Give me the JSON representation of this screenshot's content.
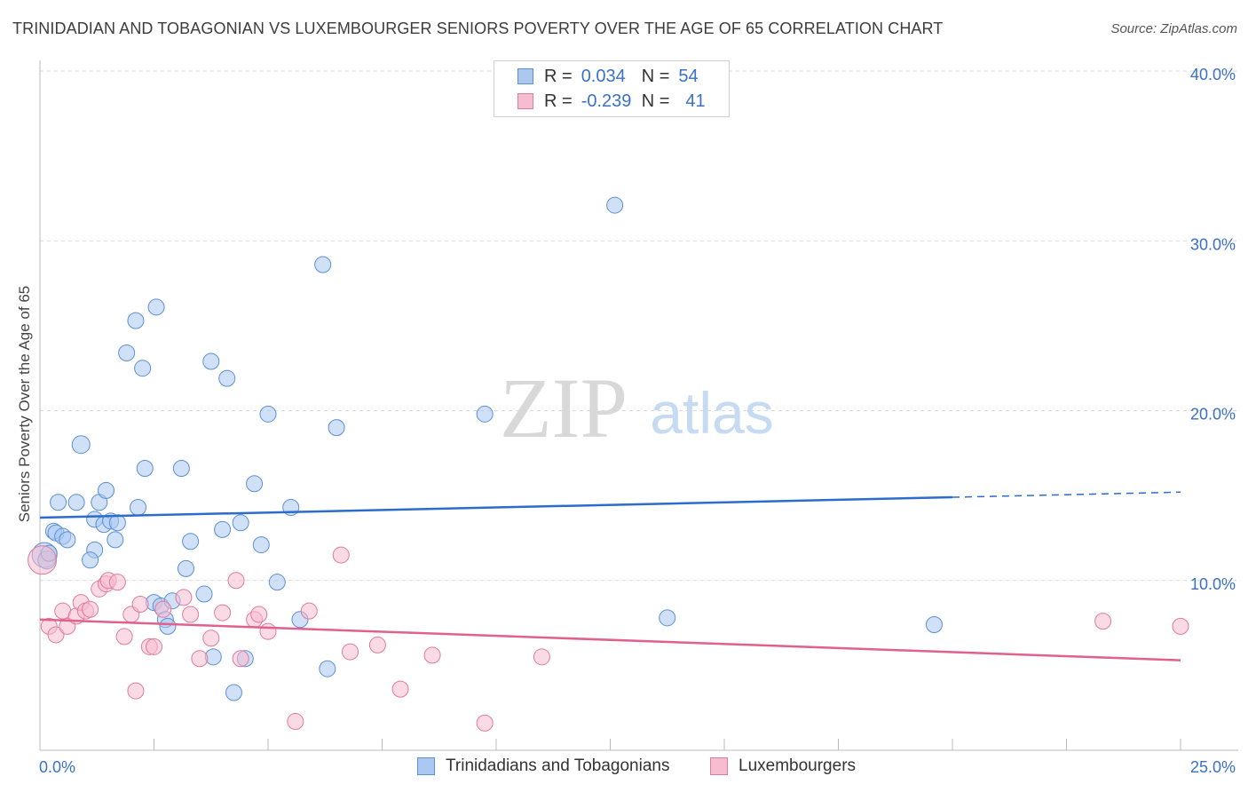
{
  "header": {
    "title": "TRINIDADIAN AND TOBAGONIAN VS LUXEMBOURGER SENIORS POVERTY OVER THE AGE OF 65 CORRELATION CHART",
    "source": "Source: ZipAtlas.com"
  },
  "legend_top": {
    "rows": [
      {
        "r_label": "R =",
        "r_value": "0.034",
        "n_label": "N =",
        "n_value": "54"
      },
      {
        "r_label": "R =",
        "r_value": "-0.239",
        "n_label": "N =",
        "n_value": "41"
      }
    ]
  },
  "legend_bottom": {
    "items": [
      {
        "label": "Trinidadians and Tobagonians"
      },
      {
        "label": "Luxembourgers"
      }
    ]
  },
  "watermark": {
    "zip": "ZIP",
    "atlas": "atlas"
  },
  "colors": {
    "blue_fill": "#aac8f0",
    "blue_stroke": "#5b8fd6",
    "blue_line": "#2b6ccc",
    "pink_fill": "#f6bcd0",
    "pink_stroke": "#e07a9c",
    "pink_line": "#e0608e",
    "grid": "#d9d9d9",
    "tick_label": "#3a70c8"
  },
  "chart_data": {
    "type": "scatter",
    "title": "TRINIDADIAN AND TOBAGONIAN VS LUXEMBOURGER SENIORS POVERTY OVER THE AGE OF 65 CORRELATION CHART",
    "xlabel": "",
    "ylabel": "Seniors Poverty Over the Age of 65",
    "xlim": [
      0,
      25
    ],
    "ylim": [
      0,
      40
    ],
    "x_tick_labels": [
      {
        "value": 0,
        "label": "0.0%"
      },
      {
        "value": 25,
        "label": "25.0%"
      }
    ],
    "y_tick_labels": [
      {
        "value": 10,
        "label": "10.0%"
      },
      {
        "value": 20,
        "label": "20.0%"
      },
      {
        "value": 30,
        "label": "30.0%"
      },
      {
        "value": 40,
        "label": "40.0%"
      }
    ],
    "grid": true,
    "series": [
      {
        "name": "Trinidadians and Tobagonians",
        "color": "blue",
        "r": 0.034,
        "n": 54,
        "trend": {
          "x0": 0,
          "y0": 13.7,
          "x1": 20,
          "y1": 14.9,
          "dashed_to_x": 25,
          "dashed_to_y": 15.2
        },
        "points": [
          [
            0.1,
            11.5,
            14
          ],
          [
            0.15,
            11.2,
            10
          ],
          [
            0.3,
            12.9,
            9
          ],
          [
            0.35,
            12.8,
            9
          ],
          [
            0.5,
            12.6,
            9
          ],
          [
            0.6,
            12.4,
            9
          ],
          [
            0.4,
            14.6,
            9
          ],
          [
            0.8,
            14.6,
            9
          ],
          [
            0.9,
            18.0,
            10
          ],
          [
            1.2,
            11.8,
            9
          ],
          [
            1.1,
            11.2,
            9
          ],
          [
            1.2,
            13.6,
            9
          ],
          [
            1.3,
            14.6,
            9
          ],
          [
            1.4,
            13.3,
            9
          ],
          [
            1.45,
            15.3,
            9
          ],
          [
            1.55,
            13.5,
            9
          ],
          [
            1.7,
            13.4,
            9
          ],
          [
            1.65,
            12.4,
            9
          ],
          [
            1.9,
            23.4,
            9
          ],
          [
            2.1,
            25.3,
            9
          ],
          [
            2.15,
            14.3,
            9
          ],
          [
            2.25,
            22.5,
            9
          ],
          [
            2.3,
            16.6,
            9
          ],
          [
            2.5,
            8.7,
            9
          ],
          [
            2.55,
            26.1,
            9
          ],
          [
            2.65,
            8.5,
            9
          ],
          [
            2.75,
            7.7,
            9
          ],
          [
            2.8,
            7.3,
            9
          ],
          [
            2.9,
            8.8,
            9
          ],
          [
            3.1,
            16.6,
            9
          ],
          [
            3.2,
            10.7,
            9
          ],
          [
            3.3,
            12.3,
            9
          ],
          [
            3.6,
            9.2,
            9
          ],
          [
            3.75,
            22.9,
            9
          ],
          [
            3.8,
            5.5,
            9
          ],
          [
            4.0,
            13.0,
            9
          ],
          [
            4.1,
            21.9,
            9
          ],
          [
            4.25,
            3.4,
            9
          ],
          [
            4.4,
            13.4,
            9
          ],
          [
            4.5,
            5.4,
            9
          ],
          [
            4.7,
            15.7,
            9
          ],
          [
            4.85,
            12.1,
            9
          ],
          [
            5.0,
            19.8,
            9
          ],
          [
            5.2,
            9.9,
            9
          ],
          [
            5.5,
            14.3,
            9
          ],
          [
            5.7,
            7.7,
            9
          ],
          [
            6.2,
            28.6,
            9
          ],
          [
            6.3,
            4.8,
            9
          ],
          [
            6.5,
            19.0,
            9
          ],
          [
            9.75,
            19.8,
            9
          ],
          [
            12.6,
            32.1,
            9
          ],
          [
            13.75,
            7.8,
            9
          ],
          [
            19.6,
            7.4,
            9
          ],
          [
            0.2,
            11.6,
            9
          ]
        ]
      },
      {
        "name": "Luxembourgers",
        "color": "pink",
        "r": -0.239,
        "n": 41,
        "trend": {
          "x0": 0,
          "y0": 7.7,
          "x1": 25,
          "y1": 5.3
        },
        "points": [
          [
            0.05,
            11.2,
            16
          ],
          [
            0.2,
            7.3,
            9
          ],
          [
            0.35,
            6.8,
            9
          ],
          [
            0.5,
            8.2,
            9
          ],
          [
            0.6,
            7.3,
            9
          ],
          [
            0.8,
            7.9,
            9
          ],
          [
            0.9,
            8.7,
            9
          ],
          [
            1.0,
            8.2,
            9
          ],
          [
            1.1,
            8.3,
            9
          ],
          [
            1.3,
            9.5,
            9
          ],
          [
            1.45,
            9.8,
            9
          ],
          [
            1.5,
            10.0,
            9
          ],
          [
            1.7,
            9.9,
            9
          ],
          [
            1.85,
            6.7,
            9
          ],
          [
            2.0,
            8.0,
            9
          ],
          [
            2.1,
            3.5,
            9
          ],
          [
            2.2,
            8.6,
            9
          ],
          [
            2.4,
            6.1,
            9
          ],
          [
            2.5,
            6.1,
            9
          ],
          [
            2.7,
            8.3,
            9
          ],
          [
            3.15,
            9.0,
            9
          ],
          [
            3.3,
            8.0,
            9
          ],
          [
            3.5,
            5.4,
            9
          ],
          [
            3.75,
            6.6,
            9
          ],
          [
            4.0,
            8.1,
            9
          ],
          [
            4.3,
            10.0,
            9
          ],
          [
            4.4,
            5.4,
            9
          ],
          [
            4.7,
            7.7,
            9
          ],
          [
            4.8,
            8.0,
            9
          ],
          [
            5.0,
            7.0,
            9
          ],
          [
            5.6,
            1.7,
            9
          ],
          [
            5.9,
            8.2,
            9
          ],
          [
            6.6,
            11.5,
            9
          ],
          [
            6.8,
            5.8,
            9
          ],
          [
            7.4,
            6.2,
            9
          ],
          [
            7.9,
            3.6,
            9
          ],
          [
            8.6,
            5.6,
            9
          ],
          [
            9.75,
            1.6,
            9
          ],
          [
            11.0,
            5.5,
            9
          ],
          [
            23.3,
            7.6,
            9
          ],
          [
            25.0,
            7.3,
            9
          ]
        ]
      }
    ]
  }
}
